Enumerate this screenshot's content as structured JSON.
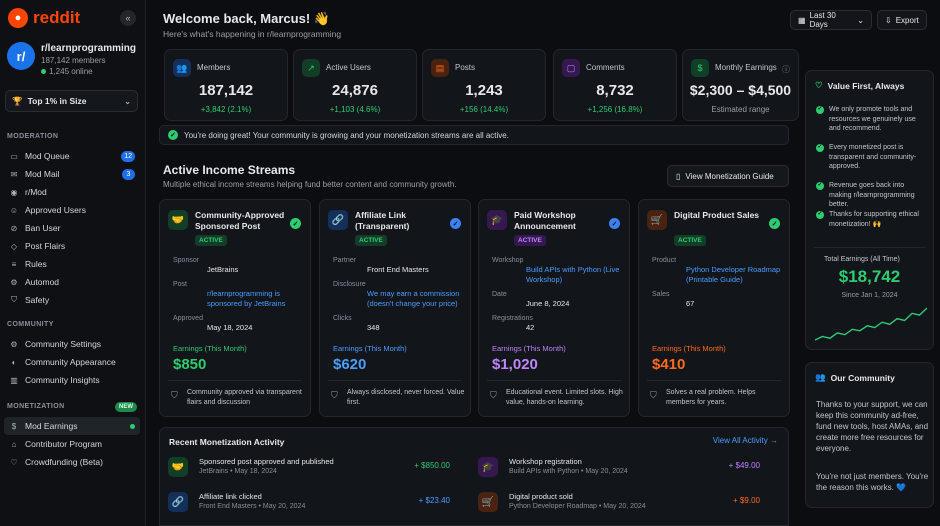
{
  "sidebar": {
    "logo": "reddit",
    "subreddit": {
      "name": "r/learnprogramming",
      "avatar": "r/",
      "members": "187,142 members",
      "online": "1,245 online"
    },
    "size_badge": "Top 1% in Size",
    "moderation_title": "MODERATION",
    "moderation": [
      {
        "label": "Mod Queue",
        "icon": "inbox-icon",
        "count": "12"
      },
      {
        "label": "Mod Mail",
        "icon": "mail-icon",
        "count": "3"
      },
      {
        "label": "r/Mod",
        "icon": "mod-icon",
        "count": ""
      },
      {
        "label": "Approved Users",
        "icon": "user-icon",
        "count": ""
      },
      {
        "label": "Ban User",
        "icon": "ban-icon",
        "count": ""
      },
      {
        "label": "Post Flairs",
        "icon": "tag-icon",
        "count": ""
      },
      {
        "label": "Rules",
        "icon": "rules-icon",
        "count": ""
      },
      {
        "label": "Automod",
        "icon": "robot-icon",
        "count": ""
      },
      {
        "label": "Safety",
        "icon": "shield-icon",
        "count": ""
      }
    ],
    "community_title": "COMMUNITY",
    "community": [
      {
        "label": "Community Settings",
        "icon": "gear-icon"
      },
      {
        "label": "Community Appearance",
        "icon": "palette-icon"
      },
      {
        "label": "Community Insights",
        "icon": "chart-icon"
      }
    ],
    "monetization_title": "MONETIZATION",
    "new_tag": "NEW",
    "monetization": [
      {
        "label": "Mod Earnings",
        "icon": "dollar-icon"
      },
      {
        "label": "Contributor Program",
        "icon": "gift-icon"
      },
      {
        "label": "Crowdfunding (Beta)",
        "icon": "heart-icon"
      }
    ]
  },
  "header": {
    "welcome": "Welcome back, Marcus! 👋",
    "subtitle": "Here's what's happening in r/learnprogramming",
    "date_range": "Last 30 Days",
    "export": "Export"
  },
  "stats": [
    {
      "label": "Members",
      "value": "187,142",
      "change": "+3,842 (2.1%)",
      "color": "#1f6feb",
      "icon": "people-icon"
    },
    {
      "label": "Active Users",
      "value": "24,876",
      "change": "+1,103 (4.6%)",
      "color": "#2ecc71",
      "icon": "trend-icon"
    },
    {
      "label": "Posts",
      "value": "1,243",
      "change": "+156 (14.4%)",
      "color": "#ff6a1a",
      "icon": "post-icon"
    },
    {
      "label": "Comments",
      "value": "8,732",
      "change": "+1,256 (16.8%)",
      "color": "#a855f7",
      "icon": "comment-icon"
    },
    {
      "label": "Monthly Earnings",
      "value": "$2,300 – $4,500",
      "change": "Estimated range",
      "color": "#2ecc71",
      "icon": "money-icon"
    }
  ],
  "banner": "You're doing great! Your community is growing and your monetization streams are all active.",
  "income": {
    "title": "Active Income Streams",
    "subtitle": "Multiple ethical income streams helping fund better content and community growth.",
    "guide_button": "View Monetization Guide",
    "cards": [
      {
        "title": "Community-Approved Sponsored Post",
        "status": "ACTIVE",
        "color": "#2ecc71",
        "icon": "handshake-icon",
        "rows": [
          {
            "k": "Sponsor",
            "v": "JetBrains",
            "link": false
          },
          {
            "k": "Post",
            "v": "r/learnprogramming is sponsored by JetBrains",
            "link": true
          },
          {
            "k": "Approved",
            "v": "May 18, 2024",
            "link": false
          }
        ],
        "earn_label": "Earnings (This Month)",
        "earn": "$850",
        "note": "Community approved via transparent flairs and discussion"
      },
      {
        "title": "Affiliate Link (Transparent)",
        "status": "ACTIVE",
        "color": "#3b82f6",
        "icon": "link-icon",
        "rows": [
          {
            "k": "Partner",
            "v": "Front End Masters",
            "link": false
          },
          {
            "k": "Disclosure",
            "v": "We may earn a commission (doesn't change your price)",
            "link": true
          },
          {
            "k": "Clicks",
            "v": "348",
            "link": false
          }
        ],
        "earn_label": "Earnings (This Month)",
        "earn": "$620",
        "note": "Always disclosed, never forced. Value first."
      },
      {
        "title": "Paid Workshop Announcement",
        "status": "ACTIVE",
        "color": "#a855f7",
        "icon": "grad-icon",
        "rows": [
          {
            "k": "Workshop",
            "v": "Build APIs with Python (Live Workshop)",
            "link": true
          },
          {
            "k": "Date",
            "v": "June 8, 2024",
            "link": false
          },
          {
            "k": "Registrations",
            "v": "42",
            "link": false
          }
        ],
        "earn_label": "Earnings (This Month)",
        "earn": "$1,020",
        "note": "Educational event. Limited slots. High value, hands-on learning."
      },
      {
        "title": "Digital Product Sales",
        "status": "ACTIVE",
        "color": "#ff6a1a",
        "icon": "cart-icon",
        "rows": [
          {
            "k": "Product",
            "v": "Python Developer Roadmap (Printable Guide)",
            "link": true
          },
          {
            "k": "Sales",
            "v": "67",
            "link": false
          }
        ],
        "earn_label": "Earnings (This Month)",
        "earn": "$410",
        "note": "Solves a real problem. Helps members for years."
      }
    ]
  },
  "activity": {
    "title": "Recent Monetization Activity",
    "view_all": "View All Activity →",
    "items": [
      {
        "title": "Sponsored post approved and published",
        "sub": "JetBrains • May 18, 2024",
        "amount": "+ $850.00",
        "color": "#2ecc71",
        "icon": "handshake-icon"
      },
      {
        "title": "Workshop registration",
        "sub": "Build APIs with Python • May 20, 2024",
        "amount": "+ $49.00",
        "color": "#a855f7",
        "icon": "grad-icon"
      },
      {
        "title": "Affiliate link clicked",
        "sub": "Front End Masters • May 20, 2024",
        "amount": "+ $23.40",
        "color": "#3b82f6",
        "icon": "link-icon"
      },
      {
        "title": "Digital product sold",
        "sub": "Python Developer Roadmap • May 20, 2024",
        "amount": "+ $9.00",
        "color": "#ff6a1a",
        "icon": "cart-icon"
      }
    ]
  },
  "values": {
    "title": "Value First, Always",
    "bullets": [
      "We only promote tools and resources we genuinely use and recommend.",
      "Every monetized post is transparent and community-approved.",
      "Revenue goes back into making r/learnprogramming better.",
      "Thanks for supporting ethical monetization! 🙌"
    ],
    "total_label": "Total Earnings (All Time)",
    "total_value": "$18,742",
    "total_since": "Since Jan 1, 2024",
    "trend": [
      2,
      3,
      2.5,
      4,
      3.5,
      5,
      4.6,
      6,
      5.5,
      7,
      6.4,
      8,
      7.5,
      9.5,
      9,
      11
    ]
  },
  "community_card": {
    "title": "Our Community",
    "p1": "Thanks to your support, we can keep this community ad-free, fund new tools, host AMAs, and create more free resources for everyone.",
    "p2": "You're not just members. You're the reason this works. 💙"
  }
}
